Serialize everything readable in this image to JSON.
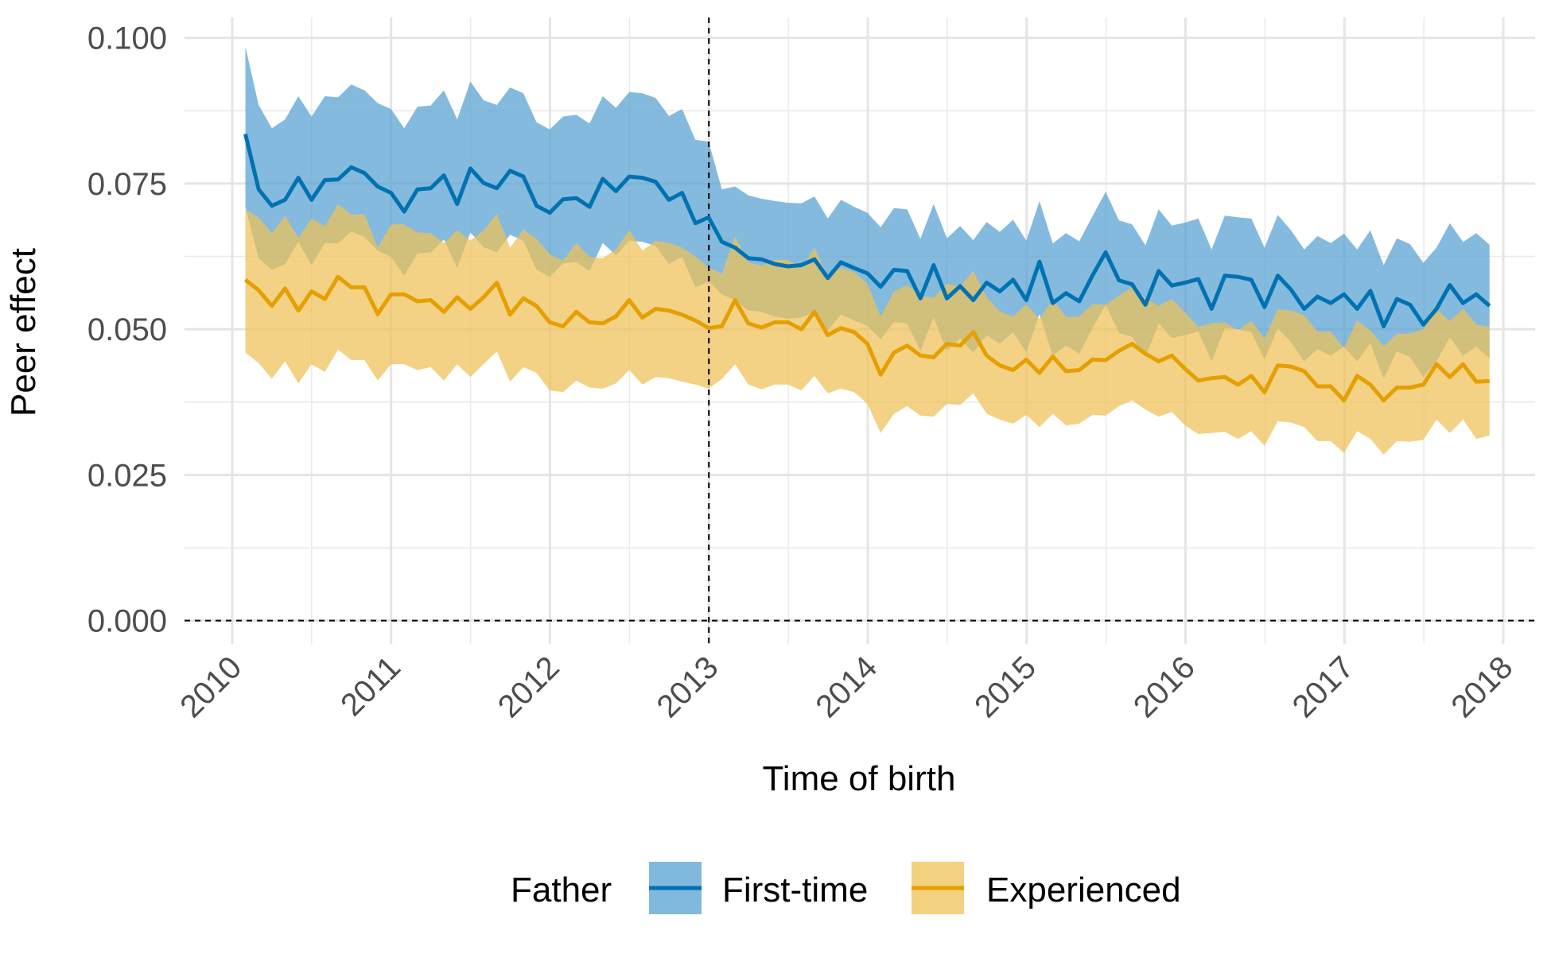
{
  "chart_data": {
    "type": "line",
    "title": "",
    "xlabel": "Time of birth",
    "ylabel": "Peer effect",
    "xlim": [
      2009.7,
      2018.2
    ],
    "ylim": [
      -0.004,
      0.1035
    ],
    "x_ticks": [
      "2010",
      "2011",
      "2012",
      "2013",
      "2014",
      "2015",
      "2016",
      "2017",
      "2018"
    ],
    "y_ticks": [
      "0.000",
      "0.025",
      "0.050",
      "0.075",
      "0.100"
    ],
    "grid": true,
    "reference_lines": {
      "vertical_x": 2013,
      "horizontal_y": 0
    },
    "legend": {
      "title": "Father",
      "position": "bottom",
      "entries": [
        "First-time",
        "Experienced"
      ]
    },
    "series": [
      {
        "name": "First-time",
        "color": "#0072B2",
        "ribbon_color": "#56A0D3",
        "start": 2010.083,
        "step": 0.0833,
        "values": [
          0.0835,
          0.074,
          0.0712,
          0.0722,
          0.076,
          0.0722,
          0.0756,
          0.0757,
          0.0778,
          0.0768,
          0.0745,
          0.0734,
          0.0702,
          0.074,
          0.0742,
          0.0764,
          0.0715,
          0.0776,
          0.0751,
          0.0742,
          0.0772,
          0.0762,
          0.0712,
          0.07,
          0.0723,
          0.0725,
          0.071,
          0.0758,
          0.0737,
          0.0762,
          0.076,
          0.0753,
          0.0722,
          0.0734,
          0.0682,
          0.0692,
          0.065,
          0.064,
          0.0622,
          0.062,
          0.0612,
          0.0608,
          0.061,
          0.062,
          0.0588,
          0.0615,
          0.0605,
          0.0596,
          0.0573,
          0.0602,
          0.06,
          0.0553,
          0.061,
          0.0553,
          0.0574,
          0.055,
          0.058,
          0.0565,
          0.0585,
          0.055,
          0.0616,
          0.0545,
          0.0562,
          0.0548,
          0.0592,
          0.0632,
          0.0584,
          0.0577,
          0.0542,
          0.06,
          0.0575,
          0.058,
          0.0586,
          0.0535,
          0.0592,
          0.059,
          0.0585,
          0.0538,
          0.0592,
          0.0568,
          0.0535,
          0.0556,
          0.0545,
          0.056,
          0.0535,
          0.0566,
          0.0505,
          0.0552,
          0.0542,
          0.0508,
          0.0535,
          0.0576,
          0.0545,
          0.056,
          0.054
        ],
        "lower": [
          0.071,
          0.0622,
          0.0602,
          0.0612,
          0.065,
          0.061,
          0.0648,
          0.0647,
          0.0668,
          0.0658,
          0.0635,
          0.0624,
          0.0592,
          0.063,
          0.0632,
          0.0654,
          0.0605,
          0.0666,
          0.0641,
          0.0632,
          0.0662,
          0.0652,
          0.0602,
          0.059,
          0.0613,
          0.0615,
          0.06,
          0.0648,
          0.0627,
          0.0652,
          0.065,
          0.0643,
          0.0612,
          0.0624,
          0.0572,
          0.0582,
          0.056,
          0.055,
          0.0532,
          0.053,
          0.0522,
          0.0518,
          0.052,
          0.053,
          0.0498,
          0.0525,
          0.0515,
          0.0506,
          0.0483,
          0.0512,
          0.051,
          0.0463,
          0.052,
          0.0463,
          0.0484,
          0.046,
          0.049,
          0.0475,
          0.0495,
          0.046,
          0.0526,
          0.0455,
          0.0472,
          0.0458,
          0.0502,
          0.0542,
          0.0494,
          0.0487,
          0.0452,
          0.051,
          0.0485,
          0.049,
          0.0496,
          0.0445,
          0.0502,
          0.05,
          0.0495,
          0.0448,
          0.0502,
          0.0478,
          0.0445,
          0.0466,
          0.0455,
          0.047,
          0.0445,
          0.0476,
          0.0415,
          0.0462,
          0.0452,
          0.0418,
          0.0445,
          0.0486,
          0.0455,
          0.047,
          0.045
        ],
        "upper": [
          0.0985,
          0.0885,
          0.0845,
          0.086,
          0.09,
          0.0865,
          0.09,
          0.0898,
          0.092,
          0.091,
          0.0888,
          0.0878,
          0.0845,
          0.0882,
          0.0884,
          0.091,
          0.086,
          0.0925,
          0.0893,
          0.0885,
          0.0915,
          0.0905,
          0.0855,
          0.0843,
          0.0865,
          0.0868,
          0.0853,
          0.09,
          0.088,
          0.0907,
          0.0905,
          0.0897,
          0.0866,
          0.0878,
          0.0825,
          0.0822,
          0.074,
          0.0745,
          0.073,
          0.0724,
          0.072,
          0.0717,
          0.0716,
          0.0728,
          0.069,
          0.0722,
          0.071,
          0.07,
          0.0675,
          0.0708,
          0.0706,
          0.0655,
          0.0715,
          0.0656,
          0.0677,
          0.0653,
          0.0684,
          0.0667,
          0.0688,
          0.0652,
          0.072,
          0.0647,
          0.0665,
          0.0651,
          0.0694,
          0.0736,
          0.0687,
          0.068,
          0.0644,
          0.0706,
          0.0678,
          0.0683,
          0.069,
          0.0637,
          0.0695,
          0.0692,
          0.069,
          0.064,
          0.0696,
          0.067,
          0.0637,
          0.066,
          0.0648,
          0.0664,
          0.0637,
          0.067,
          0.061,
          0.0656,
          0.0646,
          0.0614,
          0.064,
          0.0682,
          0.065,
          0.0665,
          0.0645
        ]
      },
      {
        "name": "Experienced",
        "color": "#E69F00",
        "ribbon_color": "#EFC156",
        "start": 2010.083,
        "step": 0.0833,
        "values": [
          0.0585,
          0.0567,
          0.054,
          0.057,
          0.0532,
          0.0565,
          0.0552,
          0.059,
          0.0572,
          0.0572,
          0.0526,
          0.056,
          0.056,
          0.0548,
          0.055,
          0.053,
          0.0555,
          0.0535,
          0.0555,
          0.058,
          0.0525,
          0.0553,
          0.054,
          0.0512,
          0.0505,
          0.053,
          0.0512,
          0.051,
          0.0522,
          0.055,
          0.052,
          0.0535,
          0.0532,
          0.0525,
          0.0515,
          0.0502,
          0.0505,
          0.055,
          0.051,
          0.0503,
          0.0512,
          0.0512,
          0.05,
          0.053,
          0.049,
          0.0502,
          0.0495,
          0.0475,
          0.0422,
          0.046,
          0.0472,
          0.0455,
          0.0452,
          0.0475,
          0.0472,
          0.0495,
          0.0455,
          0.0438,
          0.043,
          0.0448,
          0.0425,
          0.0453,
          0.0428,
          0.043,
          0.0448,
          0.0447,
          0.0463,
          0.0475,
          0.0458,
          0.0445,
          0.0455,
          0.0432,
          0.0412,
          0.0416,
          0.0418,
          0.0405,
          0.042,
          0.0392,
          0.0438,
          0.0436,
          0.0428,
          0.0402,
          0.0402,
          0.0378,
          0.042,
          0.0405,
          0.0378,
          0.04,
          0.04,
          0.0405,
          0.044,
          0.0418,
          0.044,
          0.041,
          0.0411
        ],
        "lower": [
          0.046,
          0.0442,
          0.0415,
          0.0445,
          0.0407,
          0.044,
          0.0427,
          0.0465,
          0.0447,
          0.0447,
          0.0412,
          0.044,
          0.044,
          0.043,
          0.0435,
          0.0412,
          0.044,
          0.0418,
          0.044,
          0.0462,
          0.041,
          0.0435,
          0.0425,
          0.0395,
          0.0392,
          0.0412,
          0.04,
          0.0398,
          0.0407,
          0.043,
          0.0405,
          0.0418,
          0.0416,
          0.041,
          0.0405,
          0.0398,
          0.0415,
          0.044,
          0.0405,
          0.0397,
          0.0405,
          0.0405,
          0.0395,
          0.042,
          0.039,
          0.0398,
          0.0392,
          0.0372,
          0.0322,
          0.0355,
          0.0368,
          0.0352,
          0.035,
          0.0372,
          0.037,
          0.039,
          0.0355,
          0.0345,
          0.0338,
          0.0353,
          0.0332,
          0.0355,
          0.0335,
          0.0338,
          0.0353,
          0.0352,
          0.0368,
          0.0378,
          0.0362,
          0.035,
          0.0358,
          0.0335,
          0.032,
          0.0322,
          0.0324,
          0.0312,
          0.0325,
          0.03,
          0.0342,
          0.034,
          0.0332,
          0.0308,
          0.0308,
          0.0288,
          0.0325,
          0.0312,
          0.0285,
          0.0308,
          0.0307,
          0.031,
          0.0345,
          0.0322,
          0.0345,
          0.0312,
          0.0318
        ],
        "upper": [
          0.0705,
          0.0692,
          0.0665,
          0.0695,
          0.0657,
          0.069,
          0.0677,
          0.0715,
          0.0697,
          0.0697,
          0.064,
          0.068,
          0.068,
          0.0666,
          0.0665,
          0.0648,
          0.067,
          0.0652,
          0.067,
          0.0698,
          0.064,
          0.0671,
          0.0655,
          0.0629,
          0.0618,
          0.0648,
          0.0624,
          0.0622,
          0.0637,
          0.067,
          0.0635,
          0.0652,
          0.0648,
          0.064,
          0.0625,
          0.0606,
          0.0595,
          0.066,
          0.0615,
          0.0609,
          0.0619,
          0.0619,
          0.0605,
          0.064,
          0.059,
          0.0606,
          0.0598,
          0.0578,
          0.0522,
          0.0565,
          0.0576,
          0.0558,
          0.0554,
          0.0578,
          0.0574,
          0.06,
          0.0555,
          0.0531,
          0.0522,
          0.0543,
          0.0518,
          0.0551,
          0.0521,
          0.0522,
          0.0543,
          0.0542,
          0.0558,
          0.0572,
          0.0554,
          0.054,
          0.0552,
          0.0529,
          0.0504,
          0.051,
          0.0512,
          0.0498,
          0.0515,
          0.0484,
          0.0534,
          0.0532,
          0.0524,
          0.0496,
          0.0496,
          0.0468,
          0.0515,
          0.0498,
          0.0471,
          0.0492,
          0.0493,
          0.05,
          0.0535,
          0.0514,
          0.0535,
          0.0508,
          0.0504
        ]
      }
    ]
  }
}
